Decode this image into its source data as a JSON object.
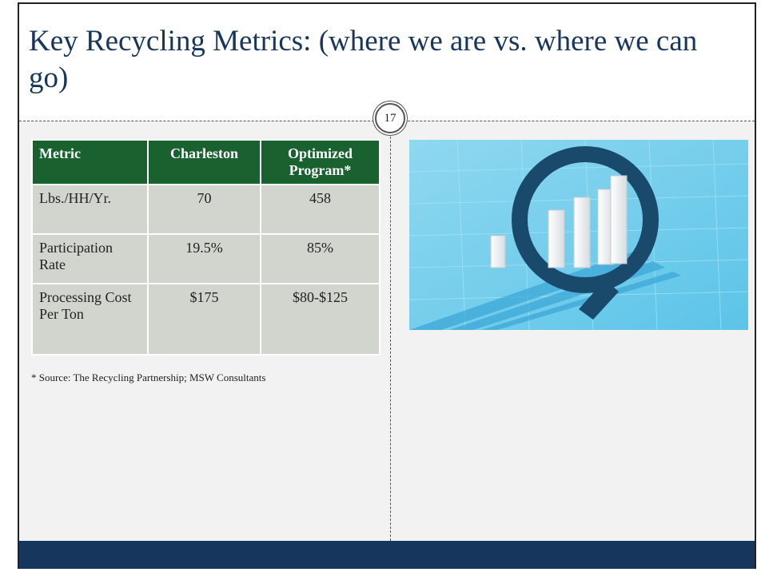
{
  "title": "Key Recycling Metrics: (where we are vs. where we can go)",
  "slide_number": "17",
  "table": {
    "header": [
      "Metric",
      "Charleston",
      "Optimized Program*"
    ],
    "rows": [
      [
        "Lbs./HH/Yr.",
        "70",
        "458"
      ],
      [
        "Participation Rate",
        "19.5%",
        "85%"
      ],
      [
        "Processing Cost Per Ton",
        "$175",
        "$80-$125"
      ]
    ]
  },
  "footnote": "* Source: The Recycling Partnership; MSW Consultants"
}
